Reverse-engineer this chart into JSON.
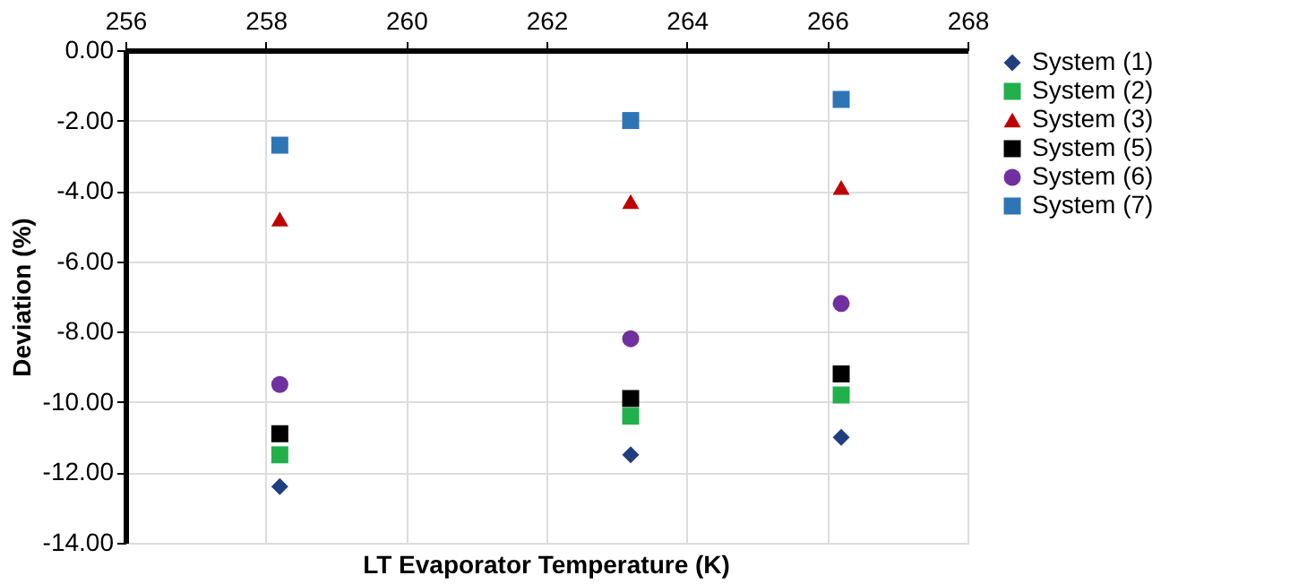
{
  "chart_data": {
    "type": "scatter",
    "xlabel": "LT Evaporator Temperature (K)",
    "ylabel": "Deviation (%)",
    "xlim": [
      256,
      268
    ],
    "xticks": [
      256,
      258,
      260,
      262,
      264,
      266,
      268
    ],
    "ylim": [
      -14,
      0
    ],
    "yticks": [
      {
        "value": 0,
        "label": "0.00"
      },
      {
        "value": -2,
        "label": "-2.00"
      },
      {
        "value": -4,
        "label": "-4.00"
      },
      {
        "value": -6,
        "label": "-6.00"
      },
      {
        "value": -8,
        "label": "-8.00"
      },
      {
        "value": -10,
        "label": "-10.00"
      },
      {
        "value": -12,
        "label": "-12.00"
      },
      {
        "value": -14,
        "label": "-14.00"
      }
    ],
    "x": [
      258.2,
      263.2,
      266.2
    ],
    "series": [
      {
        "name": "System (1)",
        "color": "#1f3f7f",
        "marker": "diamond",
        "values": [
          -12.4,
          -11.5,
          -11.0
        ]
      },
      {
        "name": "System (2)",
        "color": "#22b04b",
        "marker": "square",
        "values": [
          -11.5,
          -10.4,
          -9.8
        ]
      },
      {
        "name": "System (3)",
        "color": "#c00000",
        "marker": "triangle",
        "values": [
          -4.8,
          -4.3,
          -3.9
        ]
      },
      {
        "name": "System (5)",
        "color": "#000000",
        "marker": "square",
        "values": [
          -10.9,
          -9.9,
          -9.2
        ]
      },
      {
        "name": "System (6)",
        "color": "#7030a0",
        "marker": "circle",
        "values": [
          -9.5,
          -8.2,
          -7.2
        ]
      },
      {
        "name": "System (7)",
        "color": "#2e75b6",
        "marker": "square",
        "values": [
          -2.7,
          -2.0,
          -1.4
        ]
      }
    ],
    "grid": true,
    "legend": "right"
  }
}
